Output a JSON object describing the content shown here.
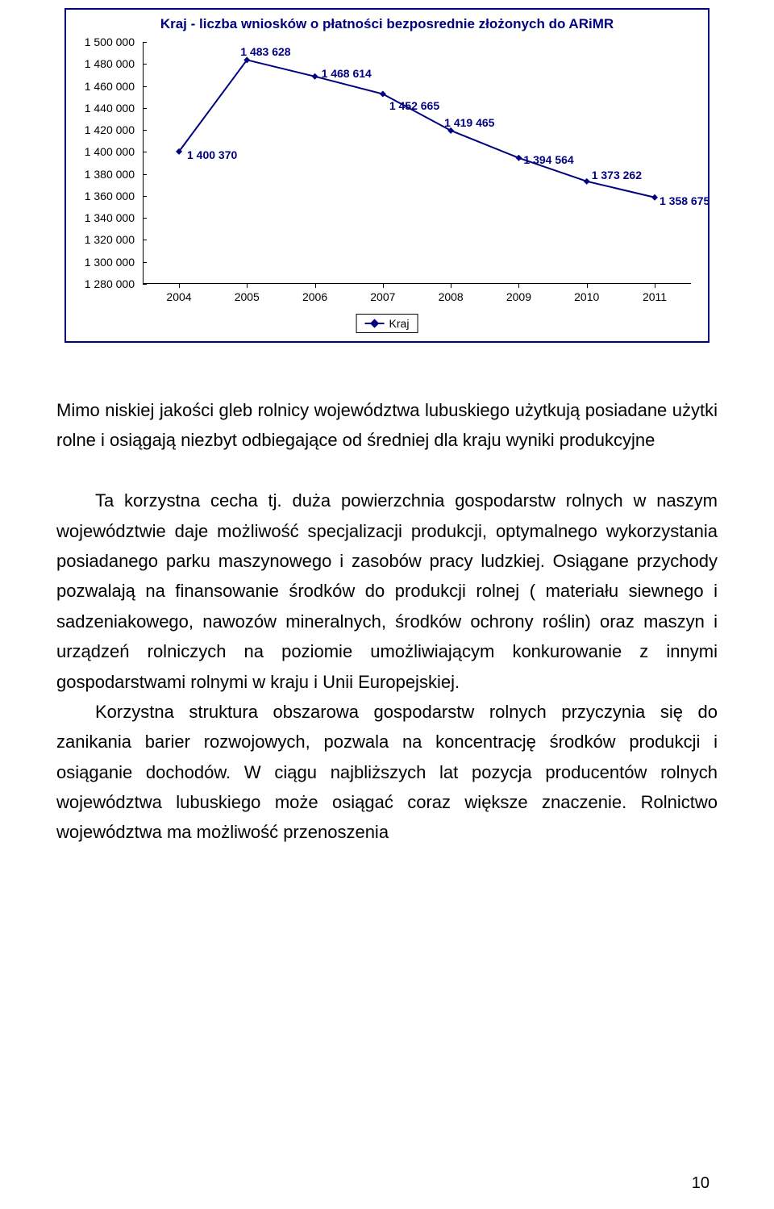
{
  "chart": {
    "title": "Kraj - liczba wniosków o płatności bezposrednie złożonych do ARiMR",
    "type": "line",
    "x_categories": [
      "2004",
      "2005",
      "2006",
      "2007",
      "2008",
      "2009",
      "2010",
      "2011"
    ],
    "y_ticks": [
      "1 280 000",
      "1 300 000",
      "1 320 000",
      "1 340 000",
      "1 360 000",
      "1 380 000",
      "1 400 000",
      "1 420 000",
      "1 440 000",
      "1 460 000",
      "1 480 000",
      "1 500 000"
    ],
    "y_min": 1280000,
    "y_max": 1500000,
    "values": [
      1400370,
      1483628,
      1468614,
      1452665,
      1419465,
      1394564,
      1373262,
      1358675
    ],
    "value_labels": [
      "1 400 370",
      "1 483 628",
      "1 468 614",
      "1 452 665",
      "1 419 465",
      "1 394 564",
      "1 373 262",
      "1 358 675"
    ],
    "legend_label": "Kraj",
    "colors": {
      "border": "#000080",
      "line": "#000080",
      "marker": "#000080",
      "text": "#000080",
      "axis": "#000000",
      "bg": "#ffffff"
    },
    "line_width": 2,
    "marker_size": 8
  },
  "paragraphs": {
    "p1": "Mimo niskiej jakości gleb rolnicy województwa lubuskiego użytkują posiadane użytki rolne i osiągają niezbyt odbiegające od średniej dla kraju wyniki produkcyjne",
    "p2": "Ta korzystna cecha tj. duża powierzchnia gospodarstw rolnych w naszym województwie daje możliwość specjalizacji  produkcji, optymalnego wykorzystania posiadanego parku maszynowego i zasobów pracy ludzkiej. Osiągane przychody pozwalają na finansowanie środków do produkcji rolnej ( materiału siewnego i sadzeniakowego, nawozów mineralnych, środków ochrony roślin) oraz maszyn i urządzeń rolniczych na poziomie umożliwiającym konkurowanie z innymi gospodarstwami rolnymi w kraju i Unii Europejskiej.",
    "p3": "Korzystna struktura obszarowa gospodarstw rolnych przyczynia się do zanikania barier rozwojowych, pozwala na koncentrację środków produkcji i osiąganie dochodów. W ciągu najbliższych lat pozycja producentów rolnych województwa lubuskiego może osiągać coraz większe znaczenie. Rolnictwo województwa ma możliwość przenoszenia"
  },
  "page_number": "10"
}
